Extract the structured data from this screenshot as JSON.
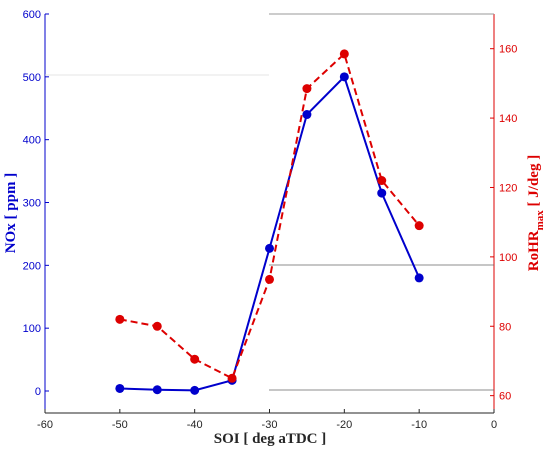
{
  "chart_data": {
    "type": "line",
    "xlabel": "SOI [ deg aTDC ]",
    "ylabel_left": "NOx [ ppm ]",
    "ylabel_right_main": "RoHR",
    "ylabel_right_sub": "max",
    "ylabel_right_tail": " [ J/deg ]",
    "xlim": [
      -60,
      0
    ],
    "ylim_left": [
      -35,
      600
    ],
    "ylim_right": [
      55,
      170
    ],
    "xticks": [
      -60,
      -50,
      -40,
      -30,
      -20,
      -10,
      0
    ],
    "yticks_left": [
      0,
      100,
      200,
      300,
      400,
      500,
      600
    ],
    "yticks_right": [
      60,
      80,
      100,
      120,
      140,
      160
    ],
    "grid": false,
    "colors": {
      "left": "#0000cc",
      "right": "#dd0000"
    },
    "x": [
      -50,
      -45,
      -40,
      -35,
      -30,
      -25,
      -20,
      -15,
      -10
    ],
    "series": [
      {
        "axis": "left",
        "style": "solid",
        "color": "#0000cc",
        "values": [
          4,
          2,
          1,
          17,
          227,
          440,
          500,
          315,
          180
        ]
      },
      {
        "axis": "right",
        "style": "dashed",
        "color": "#dd0000",
        "values": [
          82,
          80,
          70.5,
          65,
          93.5,
          148.5,
          158.5,
          122,
          109
        ]
      }
    ]
  }
}
